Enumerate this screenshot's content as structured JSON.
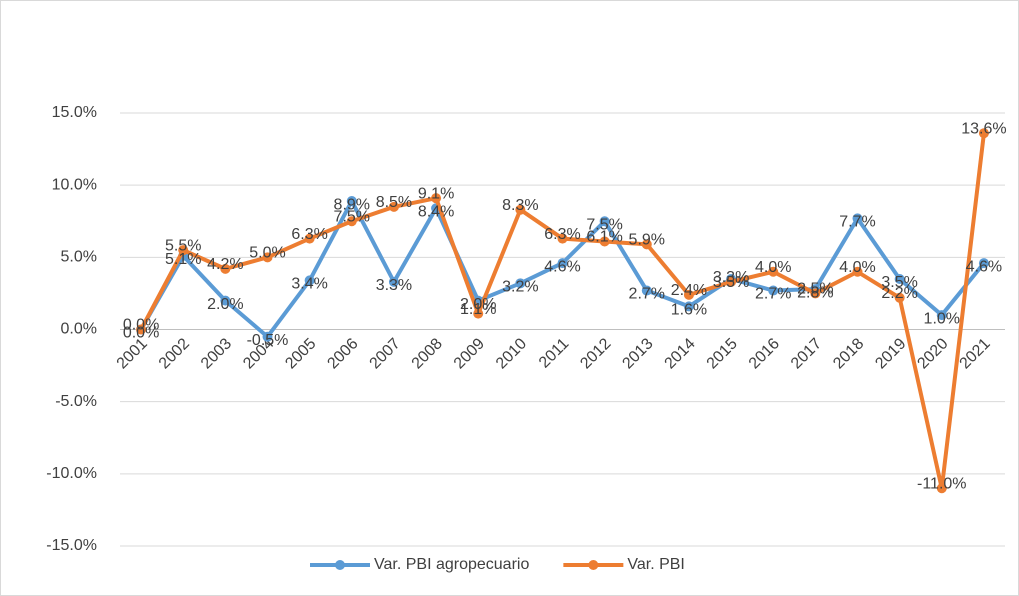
{
  "chart_data": {
    "type": "line",
    "categories": [
      "2001",
      "2002",
      "2003",
      "2004",
      "2005",
      "2006",
      "2007",
      "2008",
      "2009",
      "2010",
      "2011",
      "2012",
      "2013",
      "2014",
      "2015",
      "2016",
      "2017",
      "2018",
      "2019",
      "2020",
      "2021"
    ],
    "series": [
      {
        "name": "Var. PBI agropecuario",
        "color": "#5b9bd5",
        "values": [
          0.0,
          5.1,
          2.0,
          -0.5,
          3.4,
          8.9,
          3.3,
          8.4,
          2.0,
          3.2,
          4.6,
          7.5,
          2.7,
          1.6,
          3.5,
          2.7,
          2.8,
          7.7,
          3.5,
          1.0,
          4.6
        ],
        "value_labels": [
          "0.0%",
          "5.1%",
          "2.0%",
          "-0.5%",
          "3.4%",
          "8.9%",
          "3.3%",
          "8.4%",
          "2.0%",
          "3.2%",
          "4.6%",
          "7.5%",
          "2.7%",
          "1.6%",
          "3.5%",
          "2.7%",
          "2.8%",
          "7.7%",
          "3.5%",
          "1.0%",
          "4.6%"
        ]
      },
      {
        "name": "Var. PBI",
        "color": "#ed7d31",
        "values": [
          0.0,
          5.5,
          4.2,
          5.0,
          6.3,
          7.5,
          8.5,
          9.1,
          1.1,
          8.3,
          6.3,
          6.1,
          5.9,
          2.4,
          3.3,
          4.0,
          2.5,
          4.0,
          2.2,
          -11.0,
          13.6
        ],
        "value_labels": [
          "0.0%",
          "5.5%",
          "4.2%",
          "5.0%",
          "6.3%",
          "7.5%",
          "8.5%",
          "9.1%",
          "1.1%",
          "8.3%",
          "6.3%",
          "6.1%",
          "5.9%",
          "2.4%",
          "3.3%",
          "4.0%",
          "2.5%",
          "4.0%",
          "2.2%",
          "-11.0%",
          "13.6%"
        ]
      }
    ],
    "ylim": [
      -15,
      15
    ],
    "yticks": [
      {
        "value": -15,
        "label": "-15.0%"
      },
      {
        "value": -10,
        "label": "-10.0%"
      },
      {
        "value": -5,
        "label": "-5.0%"
      },
      {
        "value": 0,
        "label": "0.0%"
      },
      {
        "value": 5,
        "label": "5.0%"
      },
      {
        "value": 10,
        "label": "10.0%"
      },
      {
        "value": 15,
        "label": "15.0%"
      }
    ],
    "grid": true,
    "legend": "bottom"
  }
}
